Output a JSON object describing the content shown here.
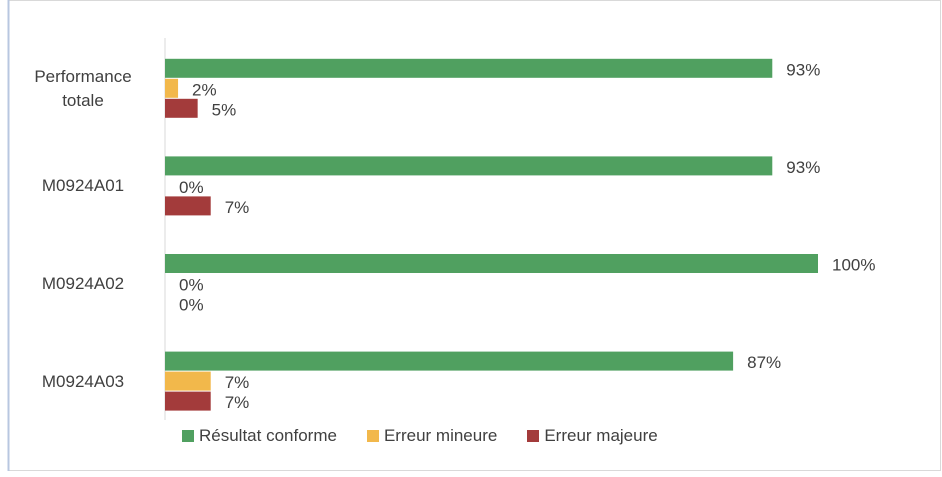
{
  "chart_data": {
    "type": "hbar",
    "categories": [
      "Performance totale",
      "M0924A01",
      "M0924A02",
      "M0924A03"
    ],
    "series": [
      {
        "name": "Résultat conforme",
        "color": "#50a060",
        "values": [
          93,
          93,
          100,
          87
        ],
        "value_labels": [
          "93%",
          "93%",
          "100%",
          "87%"
        ]
      },
      {
        "name": "Erreur mineure",
        "color": "#f2b84b",
        "values": [
          2,
          0,
          0,
          7
        ],
        "value_labels": [
          "2%",
          "0%",
          "0%",
          "7%"
        ]
      },
      {
        "name": "Erreur majeure",
        "color": "#a33b3b",
        "values": [
          5,
          7,
          0,
          7
        ],
        "value_labels": [
          "5%",
          "7%",
          "0%",
          "7%"
        ]
      }
    ],
    "legend": "bottom"
  }
}
